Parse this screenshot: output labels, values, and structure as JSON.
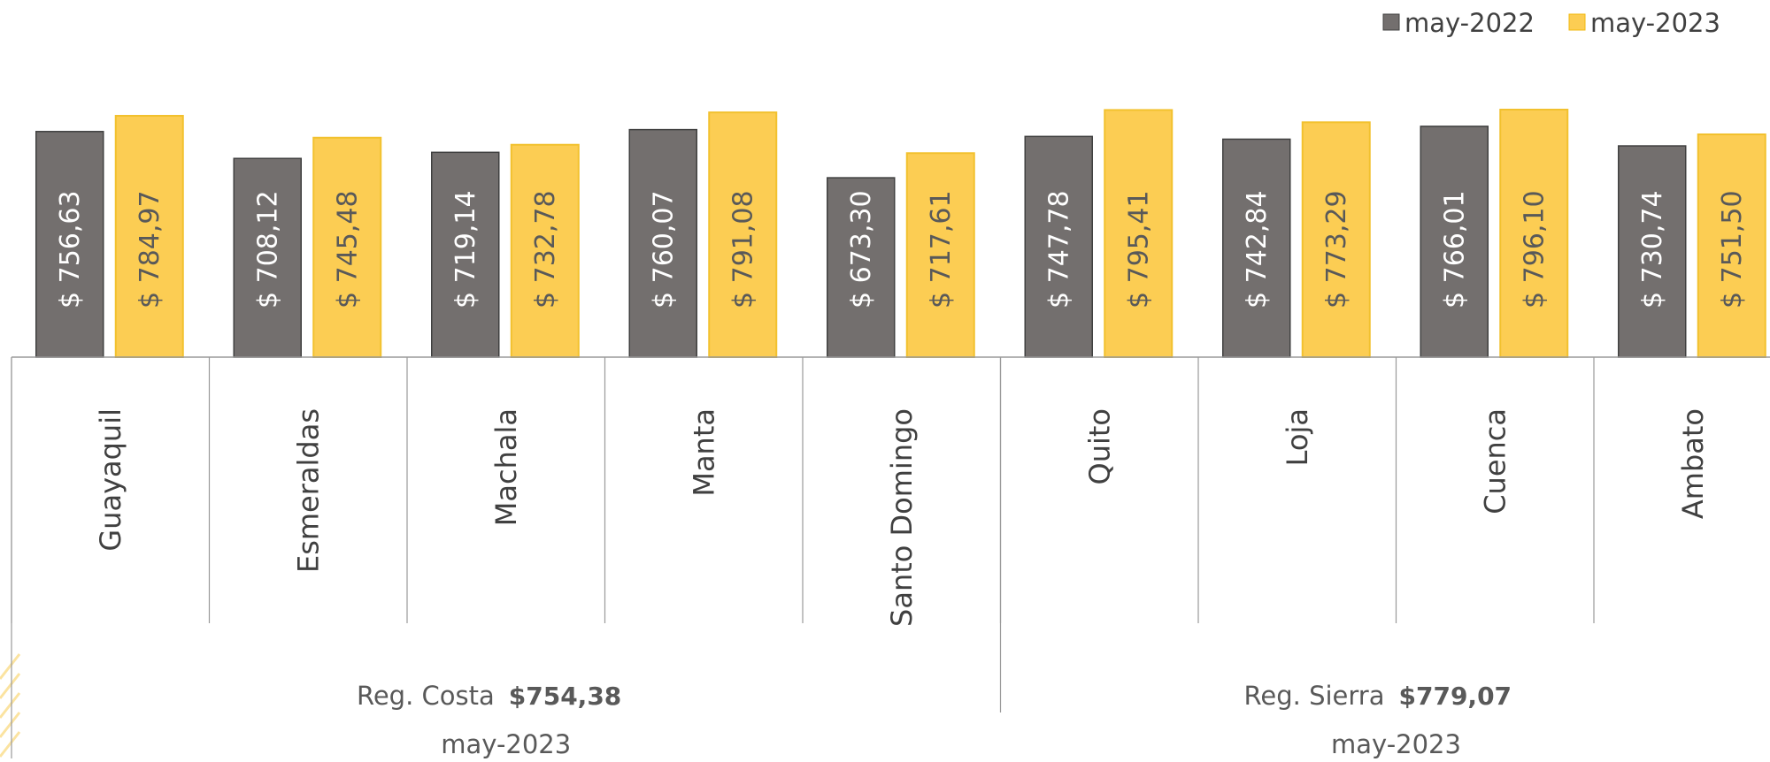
{
  "chart_data": {
    "type": "bar",
    "categories": [
      "Guayaquil",
      "Esmeraldas",
      "Machala",
      "Manta",
      "Santo Domingo",
      "Quito",
      "Loja",
      "Cuenca",
      "Ambato"
    ],
    "series": [
      {
        "name": "may-2022",
        "color": "#736f6e",
        "values": [
          756.63,
          708.12,
          719.14,
          760.07,
          673.3,
          747.78,
          742.84,
          766.01,
          730.74
        ],
        "labels": [
          "$ 756,63",
          "$ 708,12",
          "$ 719,14",
          "$ 760,07",
          "$ 673,30",
          "$ 747,78",
          "$ 742,84",
          "$ 766,01",
          "$ 730,74"
        ]
      },
      {
        "name": "may-2023",
        "color": "#fccd53",
        "values": [
          784.97,
          745.48,
          732.78,
          791.08,
          717.61,
          795.41,
          773.29,
          796.1,
          751.5
        ],
        "labels": [
          "$ 784,97",
          "$ 745,48",
          "$ 732,78",
          "$ 791,08",
          "$ 717,61",
          "$ 795,41",
          "$ 773,29",
          "$ 796,10",
          "$ 751,50"
        ]
      }
    ],
    "regions": [
      {
        "name": "Reg. Costa",
        "value": "$754,38",
        "period": "may-2023",
        "categories": 5
      },
      {
        "name": "Reg. Sierra",
        "value": "$779,07",
        "period": "may-2023",
        "categories": 4
      }
    ],
    "legend_position": "top-right",
    "ylim": [
      350,
      800
    ],
    "grid": false
  }
}
